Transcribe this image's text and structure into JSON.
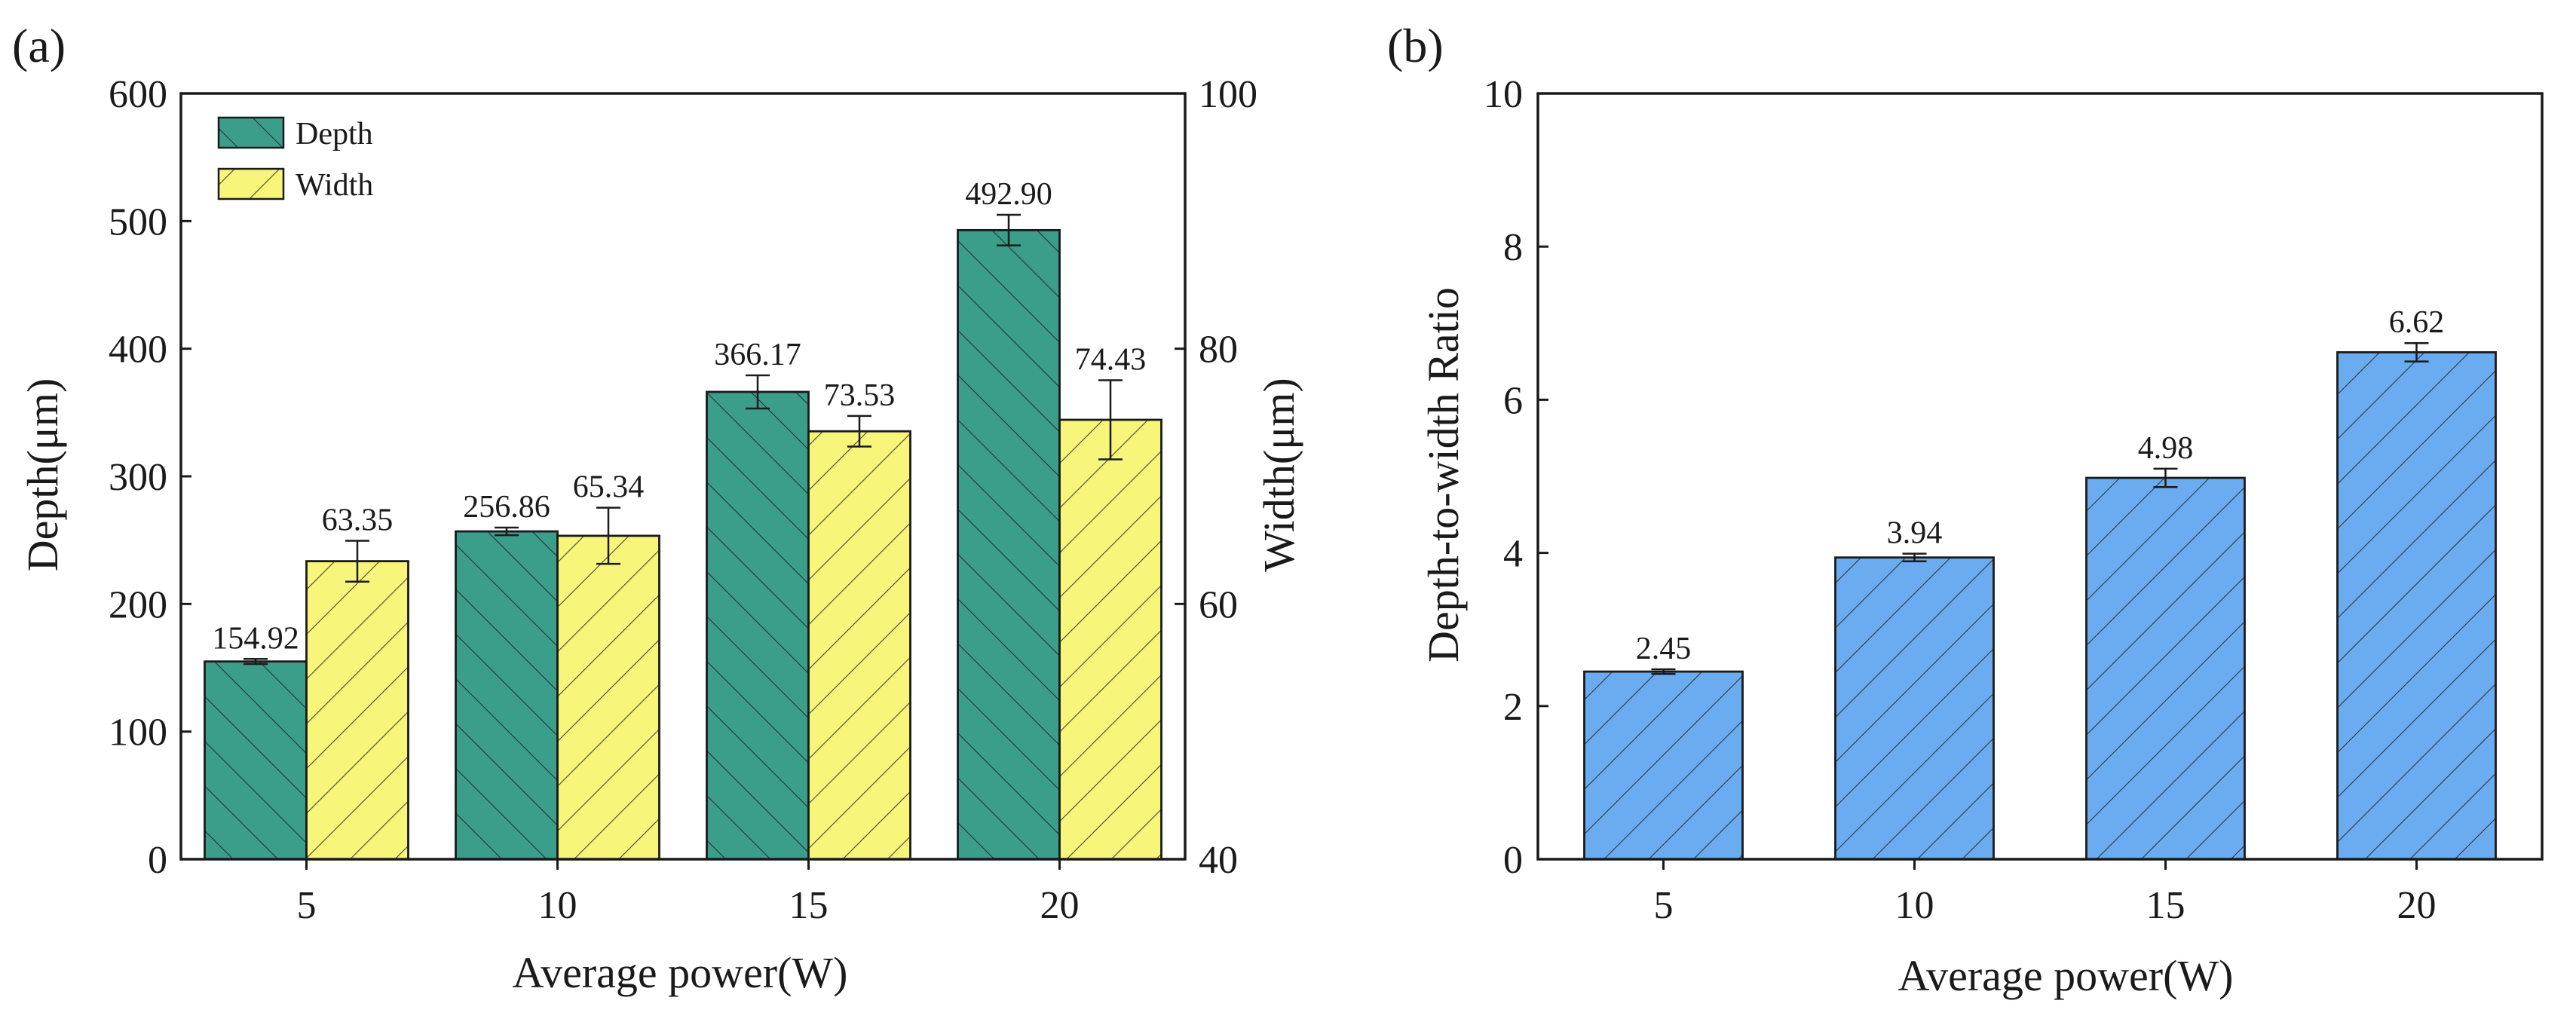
{
  "colors": {
    "depth": "#3a9e8b",
    "width": "#f7f57a",
    "ratio": "#6aacef",
    "stroke": "#1a1a1a"
  },
  "chart_data": [
    {
      "panel": "(a)",
      "type": "bar",
      "categories": [
        "5",
        "10",
        "15",
        "20"
      ],
      "xlabel": "Average power(W)",
      "ylabel": "Depth(μm)",
      "ylabel_right": "Width(μm)",
      "ylim": [
        0,
        600
      ],
      "yticks": [
        0,
        100,
        200,
        300,
        400,
        500,
        600
      ],
      "ylim_right": [
        40,
        100
      ],
      "yticks_right": [
        40,
        60,
        80,
        100
      ],
      "legend_position": "top-left",
      "grid": false,
      "series": [
        {
          "name": "Depth",
          "axis": "left",
          "values": [
            154.92,
            256.86,
            366.17,
            492.9
          ],
          "errors": [
            2,
            3,
            13,
            12
          ],
          "labels": [
            "154.92",
            "256.86",
            "366.17",
            "492.90"
          ],
          "hatch": "backslash"
        },
        {
          "name": "Width",
          "axis": "right",
          "values": [
            63.35,
            65.34,
            73.53,
            74.43
          ],
          "errors": [
            1.6,
            2.2,
            1.2,
            3.1
          ],
          "labels": [
            "63.35",
            "65.34",
            "73.53",
            "74.43"
          ],
          "hatch": "slash"
        }
      ]
    },
    {
      "panel": "(b)",
      "type": "bar",
      "categories": [
        "5",
        "10",
        "15",
        "20"
      ],
      "xlabel": "Average power(W)",
      "ylabel": "Depth-to-width Ratio",
      "ylim": [
        0,
        10
      ],
      "yticks": [
        0,
        2,
        4,
        6,
        8,
        10
      ],
      "grid": false,
      "series": [
        {
          "values": [
            2.45,
            3.94,
            4.98,
            6.62
          ],
          "errors": [
            0.03,
            0.05,
            0.12,
            0.12
          ],
          "labels": [
            "2.45",
            "3.94",
            "4.98",
            "6.62"
          ],
          "hatch": "slash"
        }
      ]
    }
  ]
}
